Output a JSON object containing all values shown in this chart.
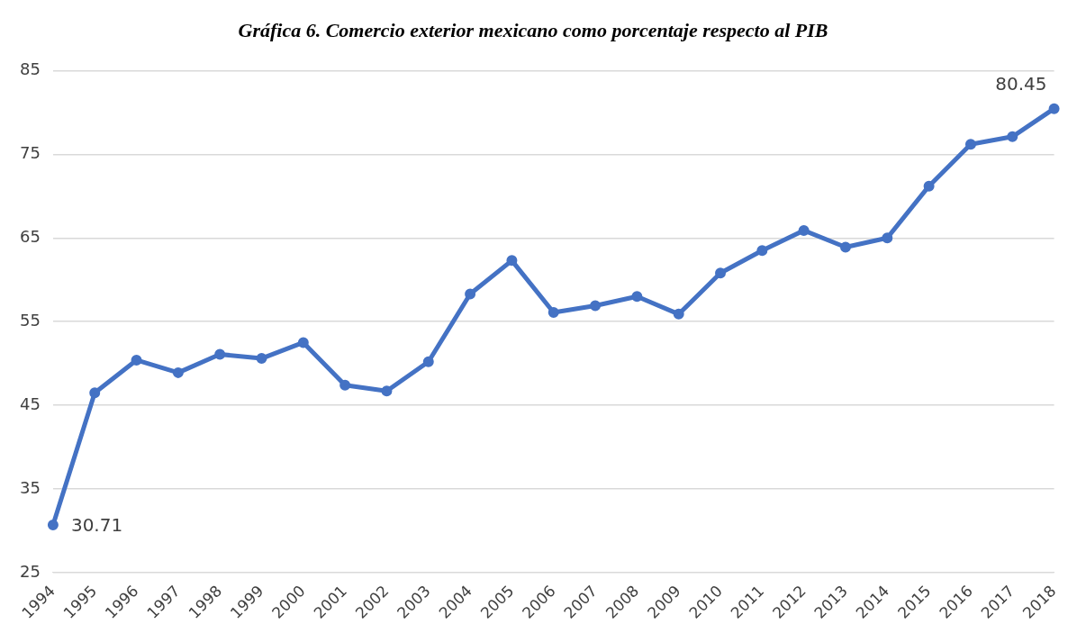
{
  "chart_data": {
    "type": "line",
    "title": "Gráfica 6. Comercio exterior mexicano como porcentaje respecto al PIB",
    "categories": [
      "1994",
      "1995",
      "1996",
      "1997",
      "1998",
      "1999",
      "2000",
      "2001",
      "2002",
      "2003",
      "2004",
      "2005",
      "2006",
      "2007",
      "2008",
      "2009",
      "2010",
      "2011",
      "2012",
      "2013",
      "2014",
      "2015",
      "2016",
      "2017",
      "2018"
    ],
    "series": [
      {
        "color": "#4472c4",
        "values": [
          30.71,
          46.5,
          50.4,
          48.9,
          51.1,
          50.6,
          52.5,
          47.4,
          46.7,
          50.2,
          58.3,
          62.3,
          56.1,
          56.9,
          58.0,
          55.9,
          60.8,
          63.5,
          65.9,
          63.9,
          65.0,
          71.2,
          76.2,
          77.1,
          80.45
        ],
        "value_labels": [
          "30.71",
          null,
          null,
          null,
          null,
          null,
          null,
          null,
          null,
          null,
          null,
          null,
          null,
          null,
          null,
          null,
          null,
          null,
          null,
          null,
          null,
          null,
          null,
          null,
          "80.45"
        ]
      }
    ],
    "ylim": [
      25,
      85
    ],
    "yticks": [
      25,
      35,
      45,
      55,
      65,
      75,
      85
    ],
    "grid": "y",
    "marker": "circle",
    "line_style": "solid",
    "legend": false
  }
}
